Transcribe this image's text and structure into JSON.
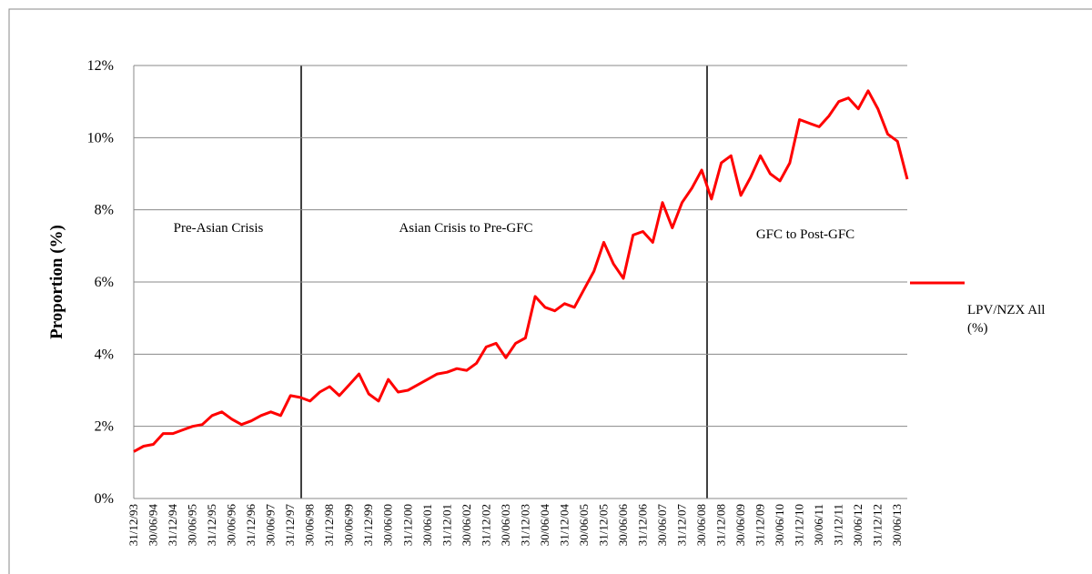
{
  "chart_data": {
    "type": "line",
    "y_label": "Proportion (%)",
    "annotations": [
      "Pre-Asian Crisis",
      "Asian Crisis to Pre-GFC",
      "GFC to Post-GFC"
    ],
    "categories": [
      "31/12/93",
      null,
      "30/06/94",
      null,
      "31/12/94",
      null,
      "30/06/95",
      null,
      "31/12/95",
      null,
      "30/06/96",
      null,
      "31/12/96",
      null,
      "30/06/97",
      null,
      "31/12/97",
      null,
      "30/06/98",
      null,
      "31/12/98",
      null,
      "30/06/99",
      null,
      "31/12/99",
      null,
      "30/06/00",
      null,
      "31/12/00",
      null,
      "30/06/01",
      null,
      "31/12/01",
      null,
      "30/06/02",
      null,
      "31/12/02",
      null,
      "30/06/03",
      null,
      "31/12/03",
      null,
      "30/06/04",
      null,
      "31/12/04",
      null,
      "30/06/05",
      null,
      "31/12/05",
      null,
      "30/06/06",
      null,
      "31/12/06",
      null,
      "30/06/07",
      null,
      "31/12/07",
      null,
      "30/06/08",
      null,
      "31/12/08",
      null,
      "30/06/09",
      null,
      "31/12/09",
      null,
      "30/06/10",
      null,
      "31/12/10",
      null,
      "30/06/11",
      null,
      "31/12/11",
      null,
      "30/06/12",
      null,
      "31/12/12",
      null,
      "30/06/13",
      null
    ],
    "series": [
      {
        "name": "LPV/NZX All (%)",
        "color": "#ff0000",
        "values": [
          1.3,
          1.45,
          1.5,
          1.8,
          1.8,
          1.9,
          2.0,
          2.05,
          2.3,
          2.4,
          2.2,
          2.05,
          2.15,
          2.3,
          2.4,
          2.3,
          2.85,
          2.8,
          2.7,
          2.95,
          3.1,
          2.85,
          3.15,
          3.45,
          2.9,
          2.7,
          3.3,
          2.95,
          3.0,
          3.15,
          3.3,
          3.45,
          3.5,
          3.6,
          3.55,
          3.75,
          4.2,
          4.3,
          3.9,
          4.3,
          4.45,
          5.6,
          5.3,
          5.2,
          5.4,
          5.3,
          5.8,
          6.3,
          7.1,
          6.5,
          6.1,
          7.3,
          7.4,
          7.1,
          8.2,
          7.5,
          8.2,
          8.6,
          9.1,
          8.3,
          9.3,
          9.5,
          8.4,
          8.9,
          9.5,
          9.0,
          8.8,
          9.3,
          10.5,
          10.4,
          10.3,
          10.6,
          11.0,
          11.1,
          10.8,
          11.3,
          10.8,
          10.1,
          9.9,
          8.85
        ]
      }
    ],
    "ylim": [
      0,
      12
    ],
    "yticks": [
      {
        "value": 0,
        "label": "0%"
      },
      {
        "value": 2,
        "label": "2%"
      },
      {
        "value": 4,
        "label": "4%"
      },
      {
        "value": 6,
        "label": "6%"
      },
      {
        "value": 8,
        "label": "8%"
      },
      {
        "value": 10,
        "label": "10%"
      },
      {
        "value": 12,
        "label": "12%"
      }
    ],
    "grid": true,
    "legend": "right"
  }
}
